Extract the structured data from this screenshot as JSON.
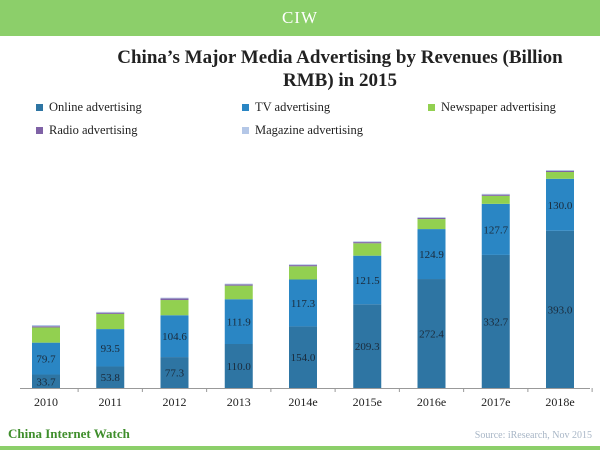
{
  "header": {
    "logo_text": "CIW"
  },
  "footer": {
    "brand": "China Internet Watch",
    "source": "Source: iResearch, Nov 2015"
  },
  "colors": {
    "online": "#2e75a3",
    "tv": "#2a86c4",
    "newspaper": "#92d050",
    "radio": "#7f62a6",
    "magazine": "#b4c7e7",
    "brand_green": "#8ccf6a"
  },
  "chart_data": {
    "type": "bar",
    "stacked": true,
    "title": "China’s Major Media Advertising by Revenues (Billion RMB) in 2015",
    "xlabel": "",
    "ylabel": "",
    "legend_position": "top",
    "categories": [
      "2010",
      "2011",
      "2012",
      "2013",
      "2014e",
      "2015e",
      "2016e",
      "2017e",
      "2018e"
    ],
    "series": [
      {
        "name": "Online advertising",
        "values": [
          33.7,
          53.8,
          77.3,
          110.0,
          154.0,
          209.3,
          272.4,
          332.7,
          393.0
        ],
        "labels": [
          "33.7",
          "53.8",
          "77.3",
          "110.0",
          "154.0",
          "209.3",
          "272.4",
          "332.7",
          "393.0"
        ]
      },
      {
        "name": "TV advertising",
        "values": [
          79.7,
          93.5,
          104.6,
          111.9,
          117.3,
          121.5,
          124.9,
          127.7,
          130.0
        ],
        "labels": [
          "79.7",
          "93.5",
          "104.6",
          "111.9",
          "117.3",
          "121.5",
          "124.9",
          "127.7",
          "130.0"
        ]
      },
      {
        "name": "Newspaper advertising",
        "values": [
          38,
          38,
          38,
          34,
          33,
          31,
          25,
          20,
          17
        ]
      },
      {
        "name": "Radio advertising",
        "values": [
          3,
          3,
          4,
          3,
          3,
          3,
          3,
          3,
          3
        ]
      },
      {
        "name": "Magazine advertising",
        "values": [
          3,
          2,
          2,
          2,
          2,
          2,
          2,
          2,
          2
        ]
      }
    ],
    "ylim": [
      0,
      600
    ],
    "grid": false
  }
}
